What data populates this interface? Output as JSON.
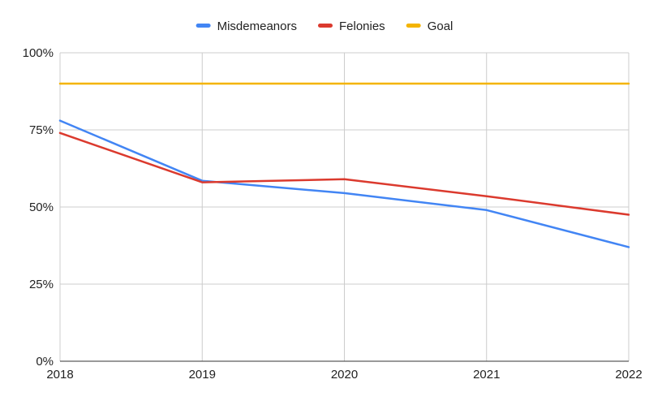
{
  "chart_data": {
    "type": "line",
    "title": "",
    "xlabel": "",
    "ylabel": "",
    "x": [
      "2018",
      "2019",
      "2020",
      "2021",
      "2022"
    ],
    "ylim": [
      0,
      100
    ],
    "yticks": [
      0,
      25,
      50,
      75,
      100
    ],
    "ytick_labels": [
      "0%",
      "25%",
      "50%",
      "75%",
      "100%"
    ],
    "grid": true,
    "legend_position": "top-center",
    "series": [
      {
        "name": "Misdemeanors",
        "color": "#4285f4",
        "values": [
          78,
          58.5,
          54.5,
          49,
          37
        ]
      },
      {
        "name": "Felonies",
        "color": "#db3a2e",
        "values": [
          74,
          58,
          59,
          53.5,
          47.5
        ]
      },
      {
        "name": "Goal",
        "color": "#f4b400",
        "values": [
          90,
          90,
          90,
          90,
          90
        ]
      }
    ]
  }
}
